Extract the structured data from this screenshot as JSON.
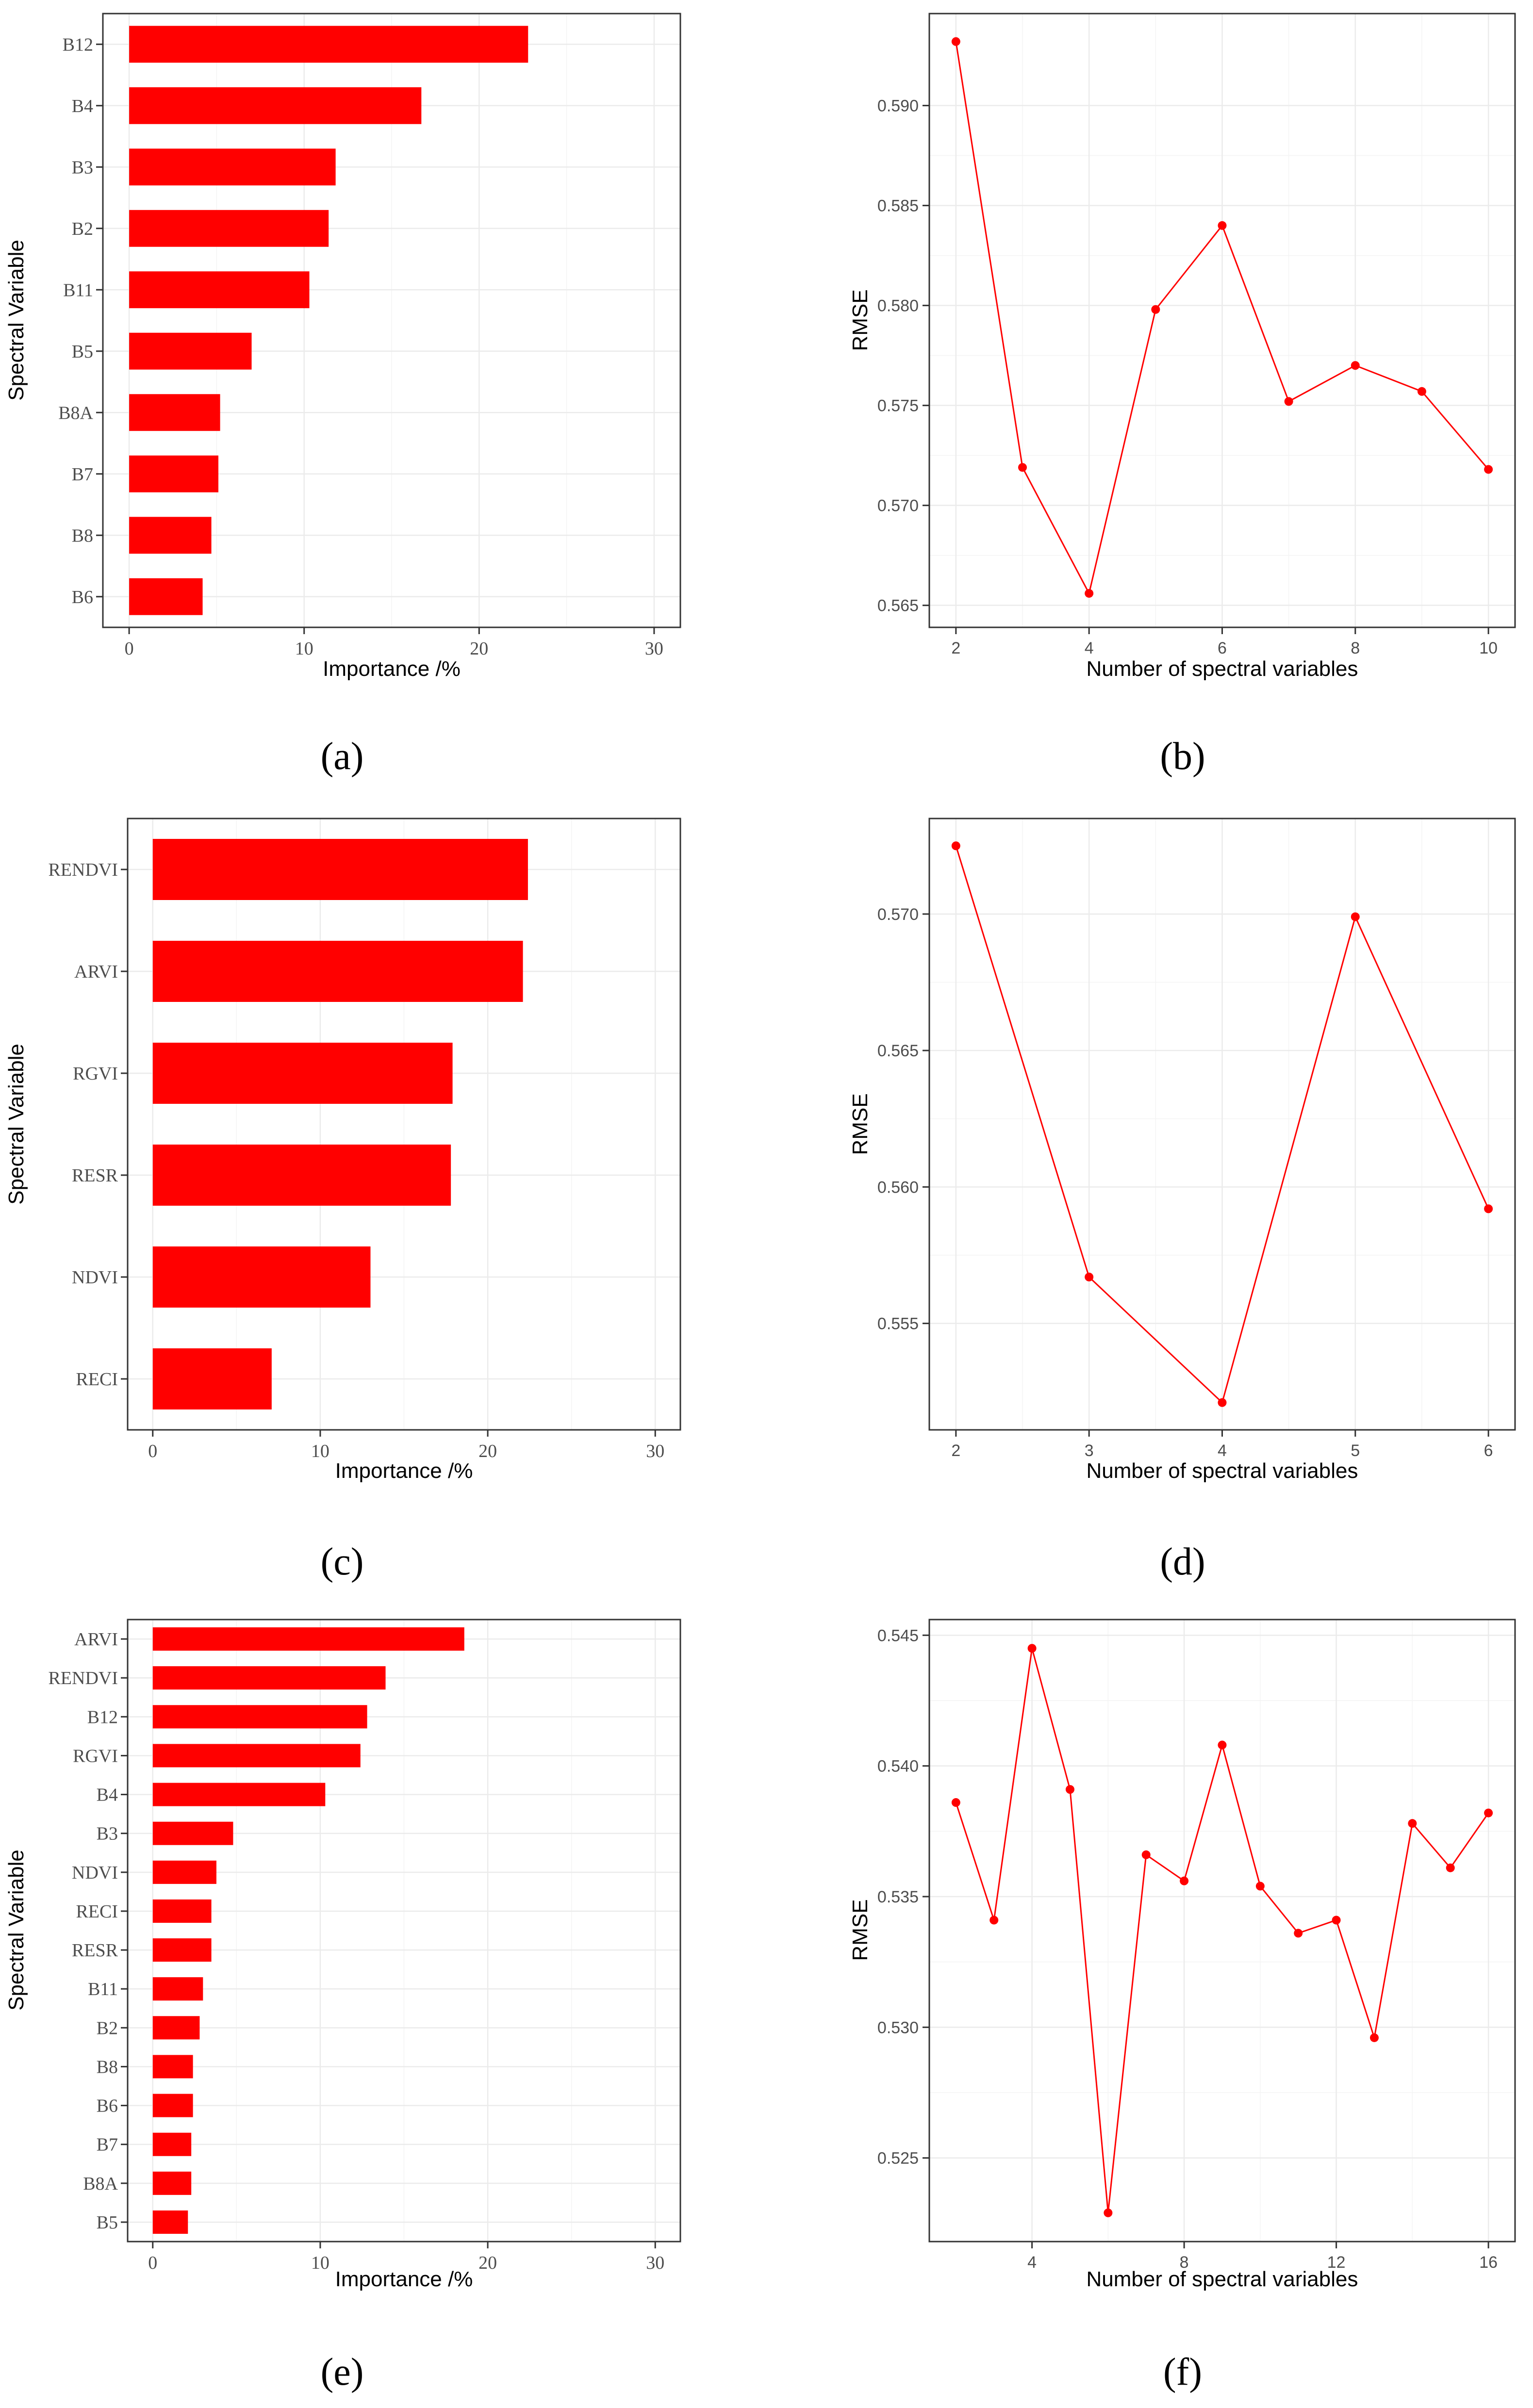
{
  "chart_data": [
    {
      "type": "bar",
      "orientation": "horizontal",
      "panel_label": "(a)",
      "categories": [
        "B12",
        "B4",
        "B3",
        "B2",
        "B11",
        "B5",
        "B8A",
        "B7",
        "B8",
        "B6"
      ],
      "values": [
        22.8,
        16.7,
        11.8,
        11.4,
        10.3,
        7.0,
        5.2,
        5.1,
        4.7,
        4.2
      ],
      "xlabel": "Importance /%",
      "ylabel": "Spectral Variable",
      "xlim": [
        -1.5,
        31.5
      ],
      "xticks": [
        0,
        10,
        20,
        30
      ],
      "xtick_labels": [
        "0",
        "10",
        "20",
        "30"
      ],
      "bar_color": "#ff0000"
    },
    {
      "type": "line",
      "panel_label": "(b)",
      "x": [
        2,
        3,
        4,
        5,
        6,
        7,
        8,
        9,
        10
      ],
      "y": [
        0.5932,
        0.5719,
        0.5656,
        0.5798,
        0.584,
        0.5752,
        0.577,
        0.5757,
        0.5718
      ],
      "xlabel": "Number of spectral variables",
      "ylabel": "RMSE",
      "xlim": [
        1.6,
        10.4
      ],
      "ylim": [
        0.5639,
        0.5946
      ],
      "xticks": [
        2,
        4,
        6,
        8,
        10
      ],
      "xtick_labels": [
        "2",
        "4",
        "6",
        "8",
        "10"
      ],
      "yticks": [
        0.565,
        0.57,
        0.575,
        0.58,
        0.585,
        0.59
      ],
      "ytick_labels": [
        "0.565",
        "0.570",
        "0.575",
        "0.580",
        "0.585",
        "0.590"
      ],
      "color": "#ff0000"
    },
    {
      "type": "bar",
      "orientation": "horizontal",
      "panel_label": "(c)",
      "categories": [
        "RENDVI",
        "ARVI",
        "RGVI",
        "RESR",
        "NDVI",
        "RECI"
      ],
      "values": [
        22.4,
        22.1,
        17.9,
        17.8,
        13.0,
        7.1
      ],
      "xlabel": "Importance /%",
      "ylabel": "Spectral Variable",
      "xlim": [
        -1.5,
        31.5
      ],
      "xticks": [
        0,
        10,
        20,
        30
      ],
      "xtick_labels": [
        "0",
        "10",
        "20",
        "30"
      ],
      "bar_color": "#ff0000"
    },
    {
      "type": "line",
      "panel_label": "(d)",
      "x": [
        2,
        3,
        4,
        5,
        6
      ],
      "y": [
        0.5725,
        0.5567,
        0.5521,
        0.5699,
        0.5592
      ],
      "xlabel": "Number of spectral variables",
      "ylabel": "RMSE",
      "xlim": [
        1.8,
        6.2
      ],
      "ylim": [
        0.5511,
        0.5735
      ],
      "xticks": [
        2,
        3,
        4,
        5,
        6
      ],
      "xtick_labels": [
        "2",
        "3",
        "4",
        "5",
        "6"
      ],
      "yticks": [
        0.555,
        0.56,
        0.565,
        0.57
      ],
      "ytick_labels": [
        "0.555",
        "0.560",
        "0.565",
        "0.570"
      ],
      "color": "#ff0000"
    },
    {
      "type": "bar",
      "orientation": "horizontal",
      "panel_label": "(e)",
      "categories": [
        "ARVI",
        "RENDVI",
        "B12",
        "RGVI",
        "B4",
        "B3",
        "NDVI",
        "RECI",
        "RESR",
        "B11",
        "B2",
        "B8",
        "B6",
        "B7",
        "B8A",
        "B5"
      ],
      "values": [
        18.6,
        13.9,
        12.8,
        12.4,
        10.3,
        4.8,
        3.8,
        3.5,
        3.5,
        3.0,
        2.8,
        2.4,
        2.4,
        2.3,
        2.3,
        2.1
      ],
      "xlabel": "Importance /%",
      "ylabel": "Spectral Variable",
      "xlim": [
        -1.5,
        31.5
      ],
      "xticks": [
        0,
        10,
        20,
        30
      ],
      "xtick_labels": [
        "0",
        "10",
        "20",
        "30"
      ],
      "bar_color": "#ff0000"
    },
    {
      "type": "line",
      "panel_label": "(f)",
      "x": [
        2,
        3,
        4,
        5,
        6,
        7,
        8,
        9,
        10,
        11,
        12,
        13,
        14,
        15,
        16
      ],
      "y": [
        0.5386,
        0.5341,
        0.5445,
        0.5391,
        0.5229,
        0.5366,
        0.5356,
        0.5408,
        0.5354,
        0.5336,
        0.5341,
        0.5296,
        0.5378,
        0.5361,
        0.5382
      ],
      "xlabel": "Number of spectral variables",
      "ylabel": "RMSE",
      "xlim": [
        1.3,
        16.7
      ],
      "ylim": [
        0.5218,
        0.5456
      ],
      "xticks": [
        4,
        8,
        12,
        16
      ],
      "xtick_labels": [
        "4",
        "8",
        "12",
        "16"
      ],
      "yticks": [
        0.525,
        0.53,
        0.535,
        0.54,
        0.545
      ],
      "ytick_labels": [
        "0.525",
        "0.530",
        "0.535",
        "0.540",
        "0.545"
      ],
      "color": "#ff0000"
    }
  ]
}
